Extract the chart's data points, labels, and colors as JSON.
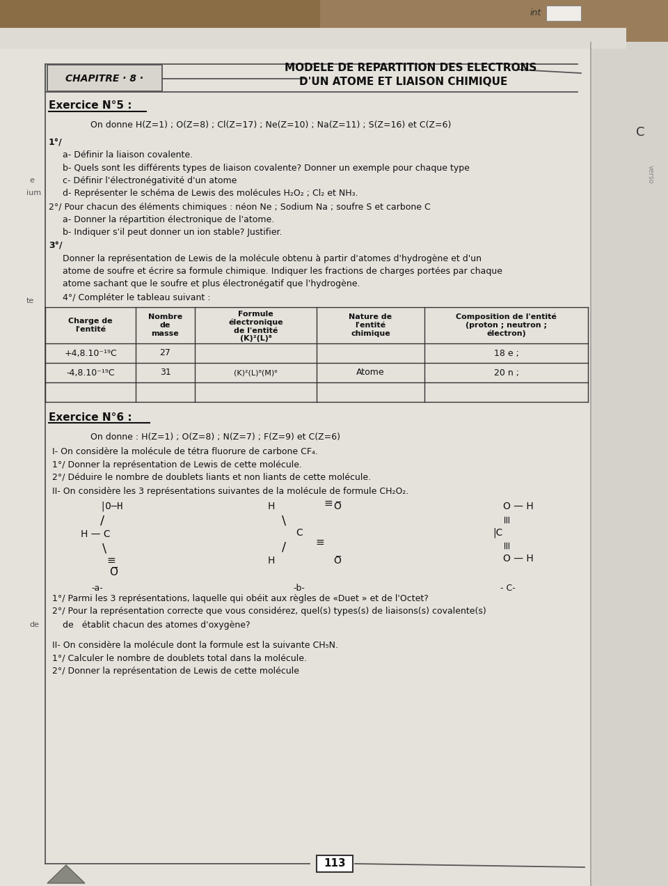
{
  "outer_bg": "#a08060",
  "paper_bg": "#e8e5e0",
  "paper_bg2": "#ededea",
  "right_bg": "#d0cdc8",
  "title_line1": "MODELE DE REPARTITION DES ELECTRONS",
  "title_line2": "D'UN ATOME ET LIAISON CHIMIQUE",
  "chapitre": "CHAPITRE · 8 ·",
  "exercice5_title": "Exercice N°5 :",
  "exercice5_donnee": "On donne H(Z=1) ; O(Z=8) ; Cl(Z=17) ; Ne(Z=10) ; Na(Z=11) ; S(Z=16) et C(Z=6)",
  "line1": "1°/",
  "line_a": "a- Définir la liaison covalente.",
  "line_b": "b- Quels sont les différents types de liaison covalente? Donner un exemple pour chaque type",
  "line_c": "c- Définir l'électronégativité d'un atome",
  "line_d": "d- Représenter le schéma de Lewis des molécules H₂O₂ ; Cl₂ et NH₃.",
  "line2": "2°/ Pour chacun des éléments chimiques : néon Ne ; Sodium Na ; soufre S et carbone C",
  "line2a": "a- Donner la répartition électronique de l'atome.",
  "line2b": "b- Indiquer s'il peut donner un ion stable? Justifier.",
  "line3": "3°/",
  "line3t1": "Donner la représentation de Lewis de la molécule obtenu à partir d'atomes d'hydrogène et d'un",
  "line3t2": "atome de soufre et écrire sa formule chimique. Indiquer les fractions de charges portées par chaque",
  "line3t3": "atome sachant que le soufre et plus électronégatif que l'hydrogène.",
  "line4": "4°/ Compléter le tableau suivant :",
  "col_headers": [
    "Charge de\nl'entité",
    "Nombre\nde\nmasse",
    "Formule\nélectronique\nde l'entité\n(K)²(L)⁸",
    "Nature de\nl'entité\nchimique",
    "Composition de l'entité\n(proton ; neutron ;\nélectron)"
  ],
  "row1": [
    "+4,8.10⁻¹⁹C",
    "27",
    "",
    "",
    "18 e ;"
  ],
  "row2": [
    "-4,8.10⁻¹⁹C",
    "31",
    "(K)²(L)⁸(M)⁶",
    "Atome",
    "20 n ;"
  ],
  "row3": [
    "",
    "",
    "",
    "",
    ""
  ],
  "ex6_title": "Exercice N°6 :",
  "ex6_donnee": "On donne : H(Z=1) ; O(Z=8) ; N(Z=7) ; F(Z=9) et C(Z=6)",
  "ex6_l1": "I- On considère la molécule de tétra fluorure de carbone CF₄.",
  "ex6_l2": "1°/ Donner la représentation de Lewis de cette molécule.",
  "ex6_l3": "2°/ Déduire le nombre de doublets liants et non liants de cette molécule.",
  "ex6_l4": "II- On considère les 3 représentations suivantes de la molécule de formule CH₂O₂.",
  "last_lines": [
    "1°/ Parmi les 3 représentations, laquelle qui obéit aux règles de «Duet » et de l'Octet?",
    "2°/ Pour la représentation correcte que vous considérez, quel(s) types(s) de liaisons(s) covalente(s)",
    "de   établit chacun des atomes d'oxygène?",
    "",
    "II- On considère la molécule dont la formule est la suivante CH₅N.",
    "1°/ Calculer le nombre de doublets total dans la molécule.",
    "2°/ Donner la représentation de Lewis de cette molécule"
  ],
  "page_number": "113"
}
